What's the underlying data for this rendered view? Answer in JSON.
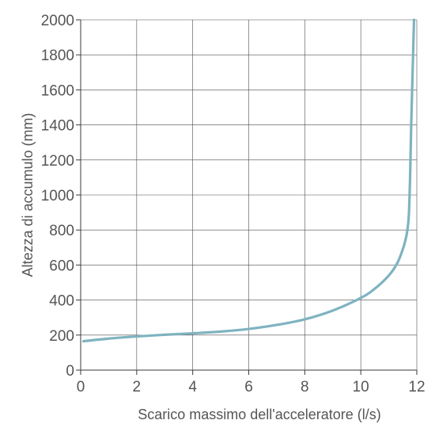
{
  "chart_data": {
    "type": "line",
    "xlabel": "Scarico massimo dell'acceleratore (l/s)",
    "ylabel": "Altezza di accumulo (mm)",
    "xlim": [
      0,
      12
    ],
    "ylim": [
      0,
      2000
    ],
    "x_ticks": [
      "0",
      "2",
      "4",
      "6",
      "8",
      "10",
      "12"
    ],
    "y_ticks": [
      "0",
      "200",
      "400",
      "600",
      "800",
      "1000",
      "1200",
      "1400",
      "1600",
      "1800",
      "2000"
    ],
    "grid": true,
    "legend": "none",
    "series": [
      {
        "color": "#7fb3c0",
        "points": [
          [
            0.1,
            165
          ],
          [
            1,
            180
          ],
          [
            2,
            192
          ],
          [
            3,
            202
          ],
          [
            4,
            210
          ],
          [
            5,
            220
          ],
          [
            6,
            235
          ],
          [
            7,
            258
          ],
          [
            8,
            290
          ],
          [
            9,
            340
          ],
          [
            10,
            412
          ],
          [
            10.5,
            465
          ],
          [
            11,
            540
          ],
          [
            11.3,
            610
          ],
          [
            11.5,
            690
          ],
          [
            11.62,
            760
          ],
          [
            11.68,
            820
          ],
          [
            11.72,
            900
          ],
          [
            11.76,
            1100
          ],
          [
            11.8,
            1400
          ],
          [
            11.85,
            1700
          ],
          [
            11.9,
            2000
          ]
        ]
      }
    ]
  }
}
